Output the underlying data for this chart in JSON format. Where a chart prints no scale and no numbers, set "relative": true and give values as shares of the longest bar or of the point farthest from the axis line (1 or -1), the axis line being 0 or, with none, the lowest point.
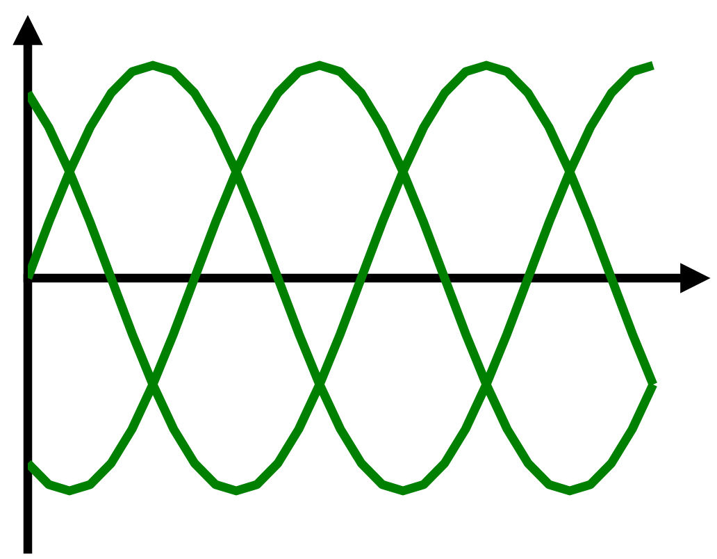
{
  "chart_data": {
    "type": "line",
    "relative": true,
    "categories": [
      null,
      null,
      null,
      null,
      null,
      null,
      null,
      null,
      null,
      null,
      null,
      null,
      null,
      null,
      null,
      null,
      null,
      null,
      null,
      null,
      null,
      null,
      null,
      null,
      null,
      null,
      null,
      null,
      null,
      null,
      null
    ],
    "series": [
      {
        "color": "#008000",
        "values": [
          0,
          0.26,
          0.5,
          0.71,
          0.87,
          0.97,
          1,
          0.97,
          0.87,
          0.71,
          0.5,
          0.26,
          0,
          -0.26,
          -0.5,
          -0.71,
          -0.87,
          -0.97,
          -1,
          -0.97,
          -0.87,
          -0.71,
          -0.5,
          -0.26,
          0,
          0.26,
          0.5,
          0.71,
          0.87,
          0.97,
          1
        ]
      },
      {
        "color": "#008000",
        "values": [
          -0.87,
          -0.97,
          -1,
          -0.97,
          -0.87,
          -0.71,
          -0.5,
          -0.26,
          0,
          0.26,
          0.5,
          0.71,
          0.87,
          0.97,
          1,
          0.97,
          0.87,
          0.71,
          0.5,
          0.26,
          0,
          -0.26,
          -0.5,
          -0.71,
          -0.87,
          -0.97,
          -1,
          -0.97,
          -0.87,
          -0.71,
          -0.5
        ]
      },
      {
        "color": "#008000",
        "values": [
          0.87,
          0.71,
          0.5,
          0.26,
          0,
          -0.26,
          -0.5,
          -0.71,
          -0.87,
          -0.97,
          -1,
          -0.97,
          -0.87,
          -0.71,
          -0.5,
          -0.26,
          0,
          0.26,
          0.5,
          0.71,
          0.87,
          0.97,
          1,
          0.97,
          0.87,
          0.71,
          0.5,
          0.26,
          0,
          -0.26,
          -0.5
        ]
      }
    ]
  }
}
